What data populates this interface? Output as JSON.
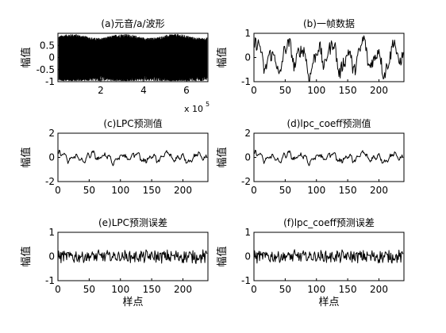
{
  "chart_data": [
    {
      "type": "line",
      "title": "(a)元音/a/波形",
      "xlabel": "",
      "ylabel": "幅值",
      "xlim": [
        1,
        70000
      ],
      "ylim": [
        -1,
        1
      ],
      "xticks": [
        2,
        4,
        6
      ],
      "yticks": [
        -1,
        -0.5,
        0,
        0.5
      ],
      "x_multiplier": "x 10",
      "x_exponent": "5",
      "series": [
        {
          "values": "dense audio waveform filling the axes, amplitude spanning about -1 to 1"
        }
      ]
    },
    {
      "type": "line",
      "title": "(b)一帧数据",
      "xlabel": "",
      "ylabel": "幅值",
      "xlim": [
        0,
        240
      ],
      "ylim": [
        -1,
        1
      ],
      "xticks": [
        0,
        50,
        100,
        150,
        200
      ],
      "yticks": [
        -1,
        0,
        1
      ]
    },
    {
      "type": "line",
      "title": "(c)LPC预测值",
      "xlabel": "",
      "ylabel": "幅值",
      "xlim": [
        0,
        240
      ],
      "ylim": [
        -2,
        2
      ],
      "xticks": [
        0,
        50,
        100,
        150,
        200
      ],
      "yticks": [
        -2,
        0,
        2
      ]
    },
    {
      "type": "line",
      "title": "(d)lpc_coeff预测值",
      "xlabel": "",
      "ylabel": "幅值",
      "xlim": [
        0,
        240
      ],
      "ylim": [
        -2,
        2
      ],
      "xticks": [
        0,
        50,
        100,
        150,
        200
      ],
      "yticks": [
        -2,
        0,
        2
      ]
    },
    {
      "type": "line",
      "title": "(e)LPC预测误差",
      "xlabel": "样点",
      "ylabel": "幅值",
      "xlim": [
        0,
        240
      ],
      "ylim": [
        -1,
        1
      ],
      "xticks": [
        0,
        50,
        100,
        150,
        200
      ],
      "yticks": [
        -1,
        0,
        1
      ]
    },
    {
      "type": "line",
      "title": "(f)lpc_coeff预测误差",
      "xlabel": "样点",
      "ylabel": "幅值",
      "xlim": [
        0,
        240
      ],
      "ylim": [
        -1,
        1
      ],
      "xticks": [
        0,
        50,
        100,
        150,
        200
      ],
      "yticks": [
        -1,
        0,
        1
      ]
    }
  ]
}
